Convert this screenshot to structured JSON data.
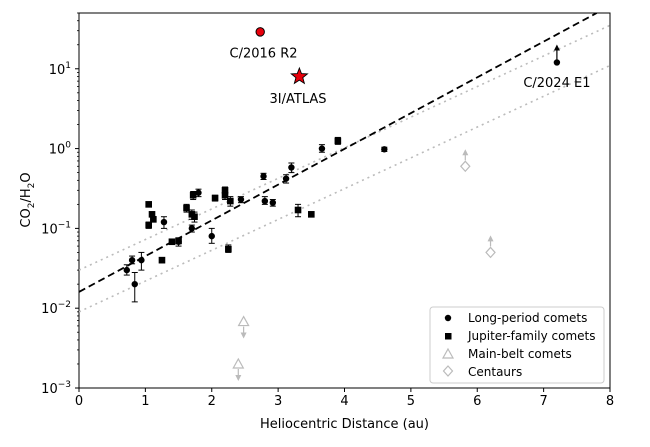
{
  "chart_data": {
    "type": "scatter",
    "xlabel": "Heliocentric Distance (au)",
    "ylabel_main": "CO",
    "ylabel_sub1": "2",
    "ylabel_mid": "/H",
    "ylabel_sub2": "2",
    "ylabel_end": "O",
    "xlim": [
      0,
      8
    ],
    "ylim": [
      0.001,
      50
    ],
    "yscale": "log",
    "x_ticks": [
      "0",
      "1",
      "2",
      "3",
      "4",
      "5",
      "6",
      "7",
      "8"
    ],
    "y_ticks": [
      {
        "base": "10",
        "exp": "−3",
        "value": 0.001
      },
      {
        "base": "10",
        "exp": "−2",
        "value": 0.01
      },
      {
        "base": "10",
        "exp": "−1",
        "value": 0.1
      },
      {
        "base": "10",
        "exp": "0",
        "value": 1
      },
      {
        "base": "10",
        "exp": "1",
        "value": 10
      }
    ],
    "grid": false,
    "legend_position": "bottom-right",
    "legend": [
      {
        "label": "Long-period comets",
        "marker": "circle",
        "color": "#000000"
      },
      {
        "label": "Jupiter-family comets",
        "marker": "square",
        "color": "#000000"
      },
      {
        "label": "Main-belt comets",
        "marker": "triangle",
        "color": "#bbbbbb"
      },
      {
        "label": "Centaurs",
        "marker": "diamond",
        "color": "#bbbbbb"
      }
    ],
    "trend_line": {
      "style": "dashed",
      "color": "#000000",
      "points": [
        [
          0,
          0.016
        ],
        [
          7.8,
          50
        ]
      ]
    },
    "trend_upper": {
      "style": "dotted",
      "color": "#bbbbbb",
      "points": [
        [
          0,
          0.03
        ],
        [
          8,
          35
        ]
      ]
    },
    "trend_lower": {
      "style": "dotted",
      "color": "#bbbbbb",
      "points": [
        [
          0,
          0.009
        ],
        [
          8,
          11
        ]
      ]
    },
    "long_period": [
      {
        "x": 0.72,
        "y": 0.03,
        "lo": 0.026,
        "hi": 0.035
      },
      {
        "x": 0.8,
        "y": 0.04,
        "lo": 0.036,
        "hi": 0.045
      },
      {
        "x": 0.84,
        "y": 0.02,
        "lo": 0.012,
        "hi": 0.028
      },
      {
        "x": 0.94,
        "y": 0.04,
        "lo": 0.03,
        "hi": 0.05
      },
      {
        "x": 1.28,
        "y": 0.12,
        "lo": 0.1,
        "hi": 0.14
      },
      {
        "x": 1.5,
        "y": 0.068,
        "lo": 0.06,
        "hi": 0.076
      },
      {
        "x": 1.7,
        "y": 0.1,
        "lo": 0.09,
        "hi": 0.11
      },
      {
        "x": 1.8,
        "y": 0.28,
        "lo": 0.25,
        "hi": 0.31
      },
      {
        "x": 2.0,
        "y": 0.08,
        "lo": 0.065,
        "hi": 0.1
      },
      {
        "x": 2.44,
        "y": 0.23,
        "lo": 0.21,
        "hi": 0.25
      },
      {
        "x": 2.78,
        "y": 0.45,
        "lo": 0.41,
        "hi": 0.49
      },
      {
        "x": 2.8,
        "y": 0.22,
        "lo": 0.2,
        "hi": 0.25
      },
      {
        "x": 2.92,
        "y": 0.21,
        "lo": 0.19,
        "hi": 0.23
      },
      {
        "x": 3.12,
        "y": 0.42,
        "lo": 0.37,
        "hi": 0.47
      },
      {
        "x": 3.2,
        "y": 0.58,
        "lo": 0.5,
        "hi": 0.66
      },
      {
        "x": 3.66,
        "y": 1.0,
        "lo": 0.9,
        "hi": 1.12
      },
      {
        "x": 4.6,
        "y": 0.98,
        "lo": 0.92,
        "hi": 1.04
      },
      {
        "x": 7.2,
        "y": 12.0,
        "lo": 12.0,
        "hi": 12.0
      }
    ],
    "jupiter_family": [
      {
        "x": 1.05,
        "y": 0.2,
        "lo": 0.19,
        "hi": 0.21
      },
      {
        "x": 1.05,
        "y": 0.11,
        "lo": 0.1,
        "hi": 0.12
      },
      {
        "x": 1.1,
        "y": 0.15,
        "lo": 0.14,
        "hi": 0.16
      },
      {
        "x": 1.12,
        "y": 0.13,
        "lo": 0.12,
        "hi": 0.14
      },
      {
        "x": 1.25,
        "y": 0.04,
        "lo": 0.037,
        "hi": 0.043
      },
      {
        "x": 1.4,
        "y": 0.068,
        "lo": 0.064,
        "hi": 0.072
      },
      {
        "x": 1.5,
        "y": 0.07,
        "lo": 0.064,
        "hi": 0.076
      },
      {
        "x": 1.62,
        "y": 0.18,
        "lo": 0.16,
        "hi": 0.2
      },
      {
        "x": 1.7,
        "y": 0.15,
        "lo": 0.13,
        "hi": 0.17
      },
      {
        "x": 1.72,
        "y": 0.26,
        "lo": 0.23,
        "hi": 0.29
      },
      {
        "x": 1.74,
        "y": 0.14,
        "lo": 0.12,
        "hi": 0.16
      },
      {
        "x": 2.05,
        "y": 0.24,
        "lo": 0.22,
        "hi": 0.26
      },
      {
        "x": 2.2,
        "y": 0.3,
        "lo": 0.27,
        "hi": 0.33
      },
      {
        "x": 2.2,
        "y": 0.26,
        "lo": 0.23,
        "hi": 0.29
      },
      {
        "x": 2.25,
        "y": 0.055,
        "lo": 0.05,
        "hi": 0.062
      },
      {
        "x": 2.28,
        "y": 0.22,
        "lo": 0.19,
        "hi": 0.25
      },
      {
        "x": 3.3,
        "y": 0.17,
        "lo": 0.14,
        "hi": 0.2
      },
      {
        "x": 3.5,
        "y": 0.15,
        "lo": 0.14,
        "hi": 0.16
      },
      {
        "x": 3.9,
        "y": 1.25,
        "lo": 1.13,
        "hi": 1.38
      }
    ],
    "main_belt": [
      {
        "x": 2.48,
        "y": 0.0068,
        "limit": "upper"
      },
      {
        "x": 2.4,
        "y": 0.002,
        "limit": "upper"
      }
    ],
    "centaurs": [
      {
        "x": 5.82,
        "y": 0.6,
        "limit": "lower"
      },
      {
        "x": 6.2,
        "y": 0.05,
        "limit": "lower"
      }
    ],
    "special": [
      {
        "name": "C/2016 R2",
        "x": 2.73,
        "y": 29,
        "marker": "circle",
        "color": "#e8000b"
      },
      {
        "name": "3I/ATLAS",
        "x": 3.32,
        "y": 8.0,
        "marker": "star",
        "color": "#e8000b"
      }
    ],
    "annotations": [
      {
        "text": "C/2016 R2",
        "x": 2.78,
        "y": 16
      },
      {
        "text": "3I/ATLAS",
        "x": 3.3,
        "y": 4.3
      },
      {
        "text": "C/2024 E1",
        "x": 7.2,
        "y": 6.8
      }
    ]
  }
}
